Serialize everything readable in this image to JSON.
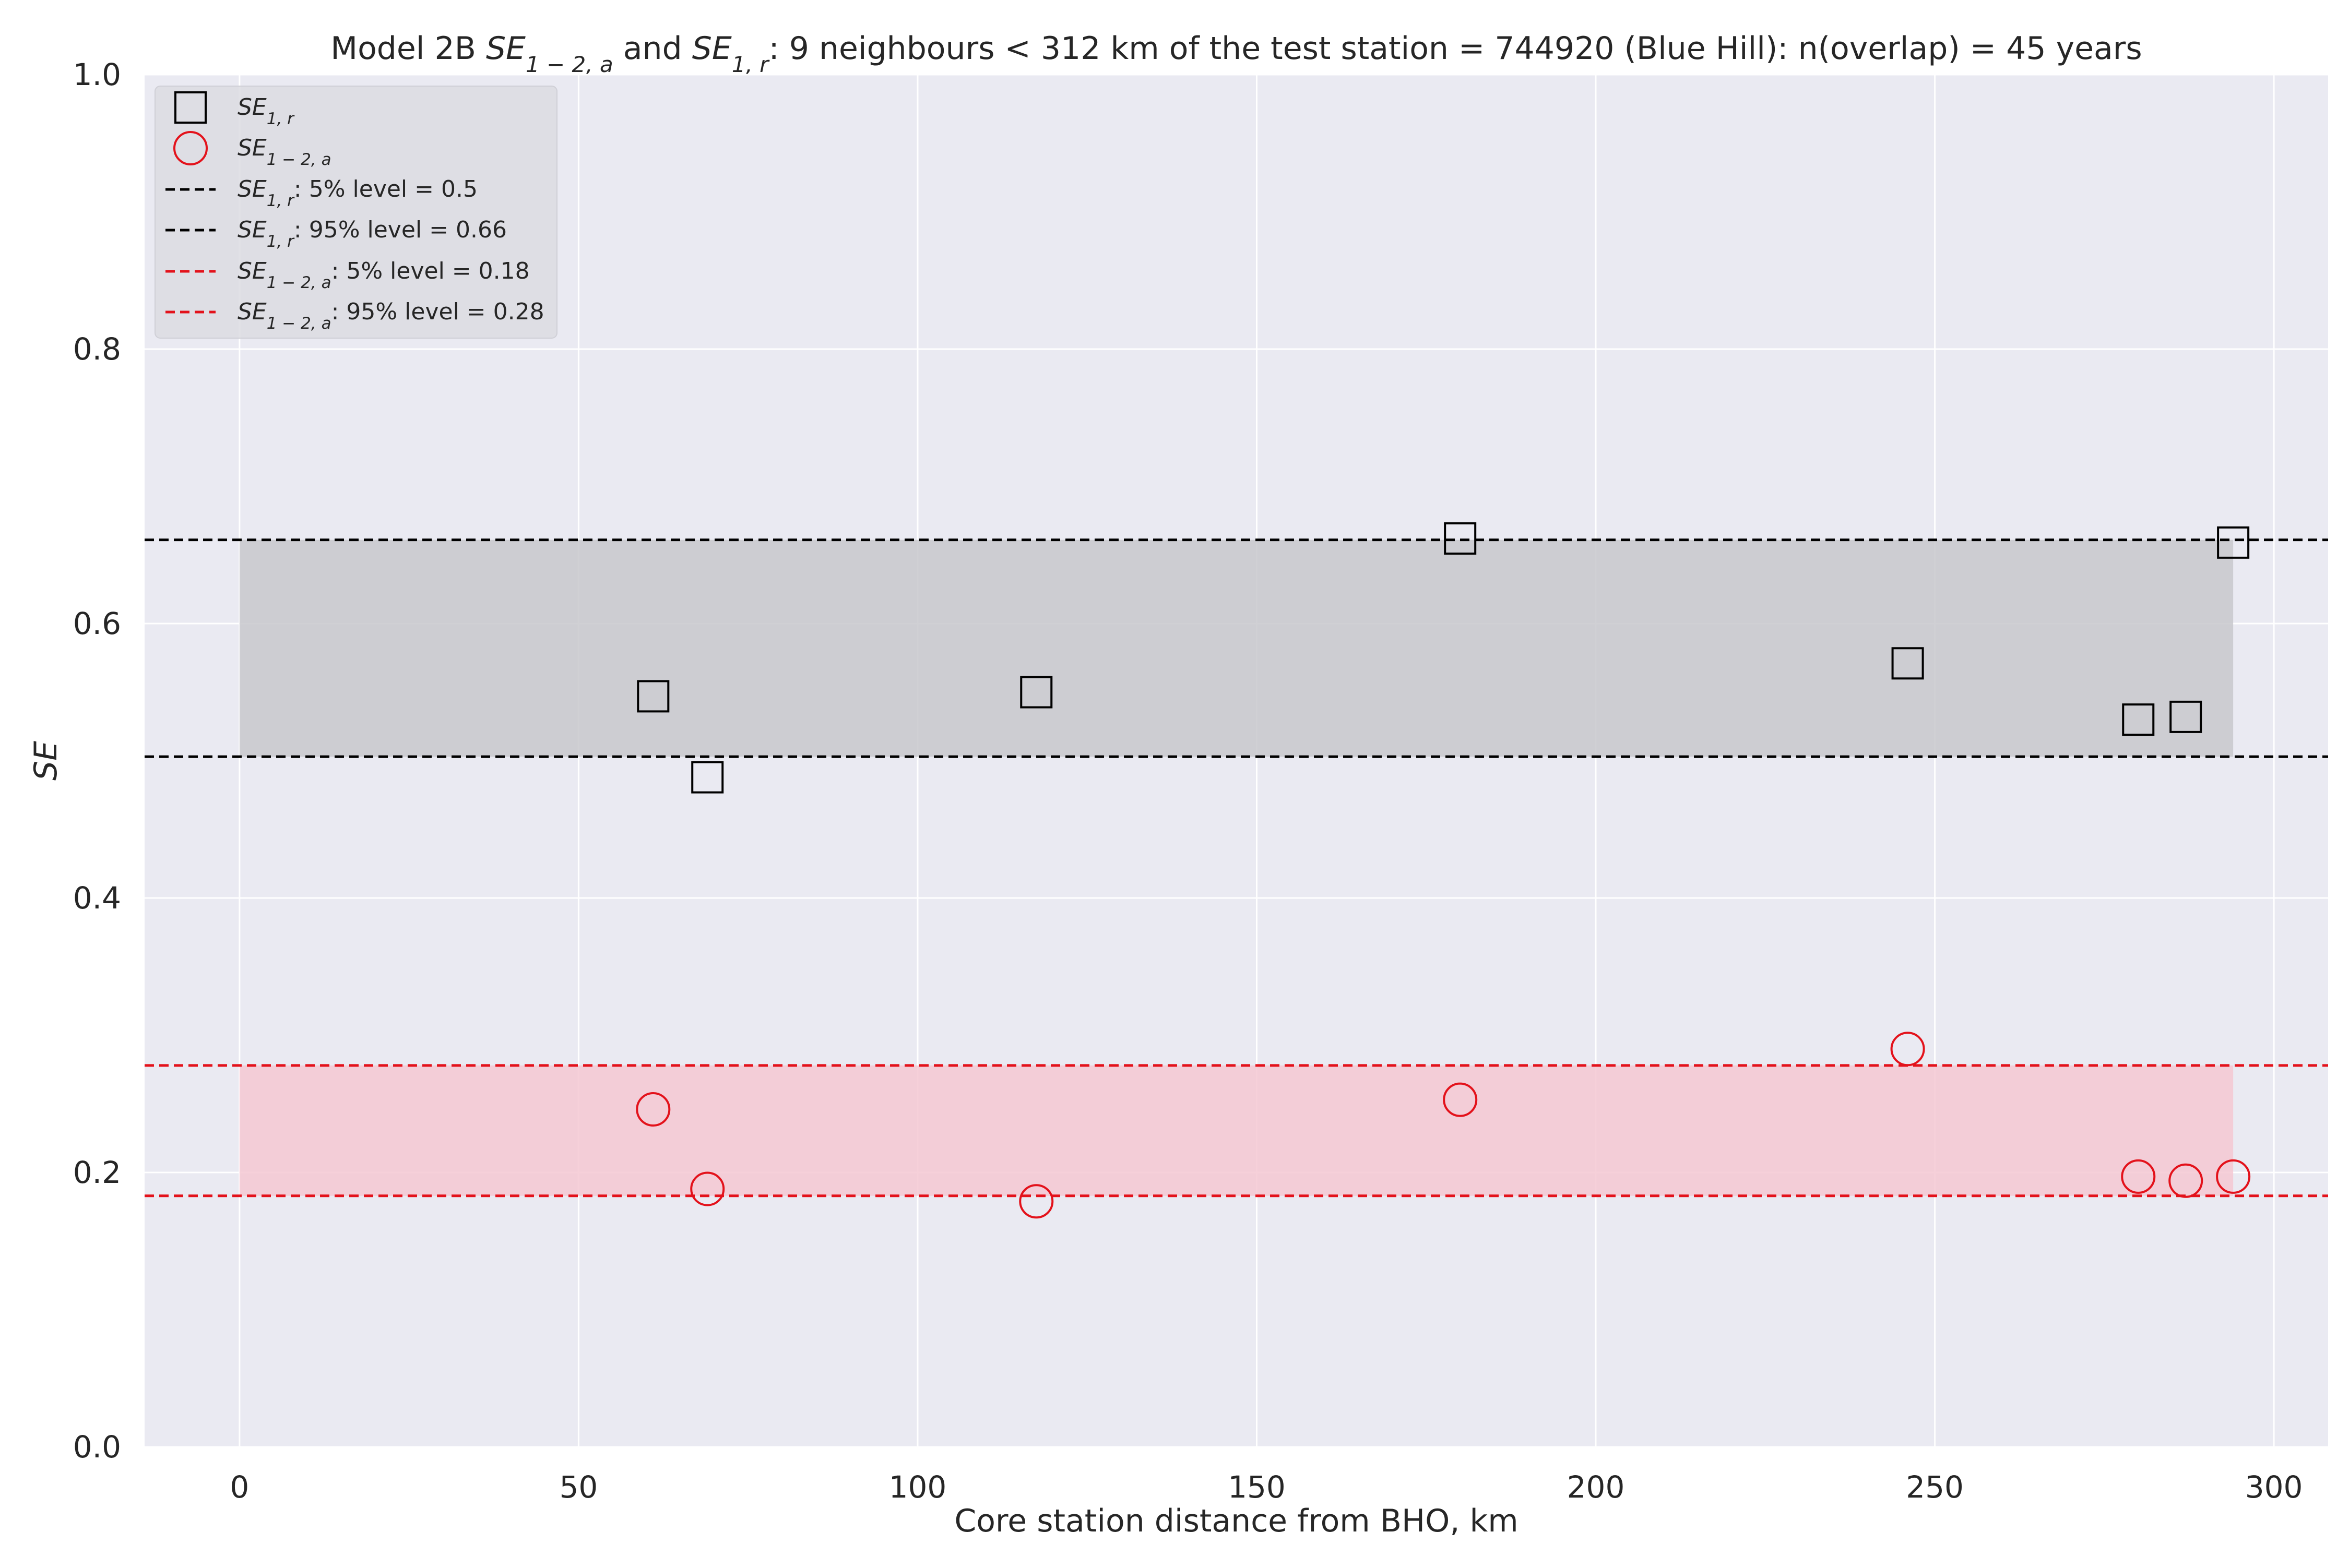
{
  "chart_data": {
    "type": "scatter",
    "title": "Model 2B SE_{1-2,a} and SE_{1,r}: 9 neighbours < 312 km of the test station = 744920 (Blue Hill): n(overlap) = 45 years",
    "title_parts": {
      "prefix": "Model 2B ",
      "se_base": "SE",
      "sub_a": "1 − 2, a",
      "and": " and ",
      "sub_r": "1, r",
      "suffix": ": 9 neighbours < 312 km of the test station = 744920 (Blue Hill): n(overlap) = 45 years"
    },
    "xlabel": "Core station distance from BHO, km",
    "ylabel": "SE",
    "xlim": [
      -14,
      308
    ],
    "ylim": [
      0.0,
      1.0
    ],
    "xticks": [
      "0",
      "50",
      "100",
      "150",
      "200",
      "250",
      "300"
    ],
    "xtick_values": [
      0,
      50,
      100,
      150,
      200,
      250,
      300
    ],
    "yticks": [
      "0.0",
      "0.2",
      "0.4",
      "0.6",
      "0.8",
      "1.0"
    ],
    "ytick_values": [
      0.0,
      0.2,
      0.4,
      0.6,
      0.8,
      1.0
    ],
    "grid": true,
    "legend_position": "top-left",
    "colors": {
      "background": "#eaeaf2",
      "grid": "#ffffff",
      "se_r": "#000000",
      "se_a": "#e3121b",
      "band_r": "#c8c8cc",
      "band_a": "#f4c8d2"
    },
    "series": [
      {
        "name": "SE_{1,r}",
        "legend_base": "SE",
        "legend_sub": "1, r",
        "marker": "square",
        "x": [
          61,
          69,
          117.5,
          180,
          246,
          280,
          287,
          294
        ],
        "y": [
          0.547,
          0.488,
          0.55,
          0.662,
          0.571,
          0.53,
          0.532,
          0.659
        ]
      },
      {
        "name": "SE_{1-2,a}",
        "legend_base": "SE",
        "legend_sub": "1 − 2, a",
        "marker": "circle",
        "x": [
          61,
          69,
          117.5,
          180,
          246,
          280,
          287,
          294
        ],
        "y": [
          0.246,
          0.188,
          0.179,
          0.253,
          0.29,
          0.197,
          0.194,
          0.197
        ]
      }
    ],
    "reference_lines": [
      {
        "name": "SE_{1,r}: 5% level = 0.5",
        "legend_base": "SE",
        "legend_sub": "1, r",
        "legend_rest": ": 5% level = 0.5",
        "y": 0.503,
        "color": "#000000"
      },
      {
        "name": "SE_{1,r}: 95% level = 0.66",
        "legend_base": "SE",
        "legend_sub": "1, r",
        "legend_rest": ": 95% level = 0.66",
        "y": 0.661,
        "color": "#000000"
      },
      {
        "name": "SE_{1-2,a}: 5% level = 0.18",
        "legend_base": "SE",
        "legend_sub": "1 − 2, a",
        "legend_rest": ": 5% level = 0.18",
        "y": 0.183,
        "color": "#e3121b"
      },
      {
        "name": "SE_{1-2,a}: 95% level = 0.28",
        "legend_base": "SE",
        "legend_sub": "1 − 2, a",
        "legend_rest": ": 95% level = 0.28",
        "y": 0.278,
        "color": "#e3121b"
      }
    ],
    "bands": [
      {
        "x_from": 0,
        "x_to": 294,
        "y_from": 0.503,
        "y_to": 0.661,
        "color": "#c8c8cc"
      },
      {
        "x_from": 0,
        "x_to": 294,
        "y_from": 0.183,
        "y_to": 0.278,
        "color": "#f4c8d2"
      }
    ]
  }
}
